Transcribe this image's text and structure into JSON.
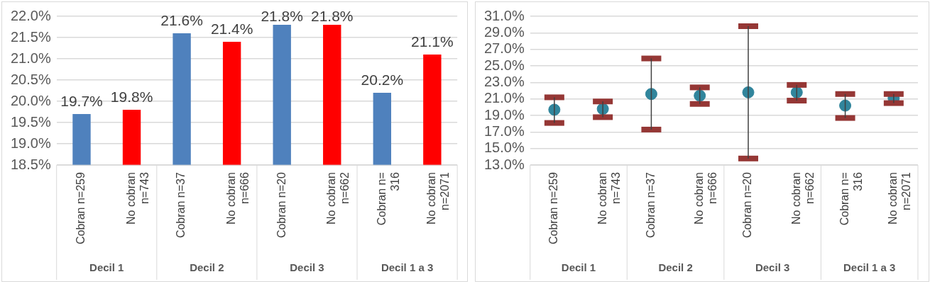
{
  "chart_data": [
    {
      "type": "bar",
      "categories": [
        "Cobran n=259",
        "No cobran n=743",
        "Cobran n=37",
        "No cobran n=666",
        "Cobran n=20",
        "No cobran n=662",
        "Cobran n= 316",
        "No cobran n=2071"
      ],
      "values": [
        19.7,
        19.8,
        21.6,
        21.4,
        21.8,
        21.8,
        20.2,
        21.1
      ],
      "colors": [
        "#4f81bd",
        "#ff0000",
        "#4f81bd",
        "#ff0000",
        "#4f81bd",
        "#ff0000",
        "#4f81bd",
        "#ff0000"
      ],
      "value_labels": [
        "19.7%",
        "19.8%",
        "21.6%",
        "21.4%",
        "21.8%",
        "21.8%",
        "20.2%",
        "21.1%"
      ],
      "ylim": [
        18.5,
        22
      ],
      "yticks": [
        {
          "value": 18.5,
          "label": "18.5%"
        },
        {
          "value": 19,
          "label": "19.0%"
        },
        {
          "value": 19.5,
          "label": "19.5%"
        },
        {
          "value": 20,
          "label": "20.0%"
        },
        {
          "value": 20.5,
          "label": "20.5%"
        },
        {
          "value": 21,
          "label": "21.0%"
        },
        {
          "value": 21.5,
          "label": "21.5%"
        },
        {
          "value": 22,
          "label": "22.0%"
        }
      ],
      "grid": "y",
      "annotations": [
        "Decil 1",
        "Decil 2",
        "Decil 3",
        "Decil 1 a 3"
      ]
    },
    {
      "type": "scatter",
      "categories": [
        "Cobran n=259",
        "No cobran n=743",
        "Cobran n=37",
        "No cobran n=666",
        "Cobran n=20",
        "No cobran n=662",
        "Cobran n= 316",
        "No cobran n=2071"
      ],
      "series": [
        {
          "color": "#31859c",
          "values": [
            19.7,
            19.8,
            21.6,
            21.4,
            21.8,
            21.8,
            20.2,
            21.1
          ],
          "errors": [
            [
              18.1,
              21.2
            ],
            [
              18.8,
              20.7
            ],
            [
              17.3,
              25.9
            ],
            [
              20.4,
              22.4
            ],
            [
              13.8,
              29.8
            ],
            [
              20.8,
              22.7
            ],
            [
              18.7,
              21.6
            ],
            [
              20.5,
              21.6
            ]
          ]
        }
      ],
      "marker": "circle",
      "ylim": [
        13,
        31
      ],
      "yticks": [
        {
          "value": 13,
          "label": "13.0%"
        },
        {
          "value": 15,
          "label": "15.0%"
        },
        {
          "value": 17,
          "label": "17.0%"
        },
        {
          "value": 19,
          "label": "19.0%"
        },
        {
          "value": 21,
          "label": "21.0%"
        },
        {
          "value": 23,
          "label": "23.0%"
        },
        {
          "value": 25,
          "label": "25.0%"
        },
        {
          "value": 27,
          "label": "27.0%"
        },
        {
          "value": 29,
          "label": "29.0%"
        },
        {
          "value": 31,
          "label": "31.0%"
        }
      ],
      "grid": "y",
      "annotations": [
        "Decil 1",
        "Decil 2",
        "Decil 3",
        "Decil 1 a 3"
      ]
    }
  ]
}
